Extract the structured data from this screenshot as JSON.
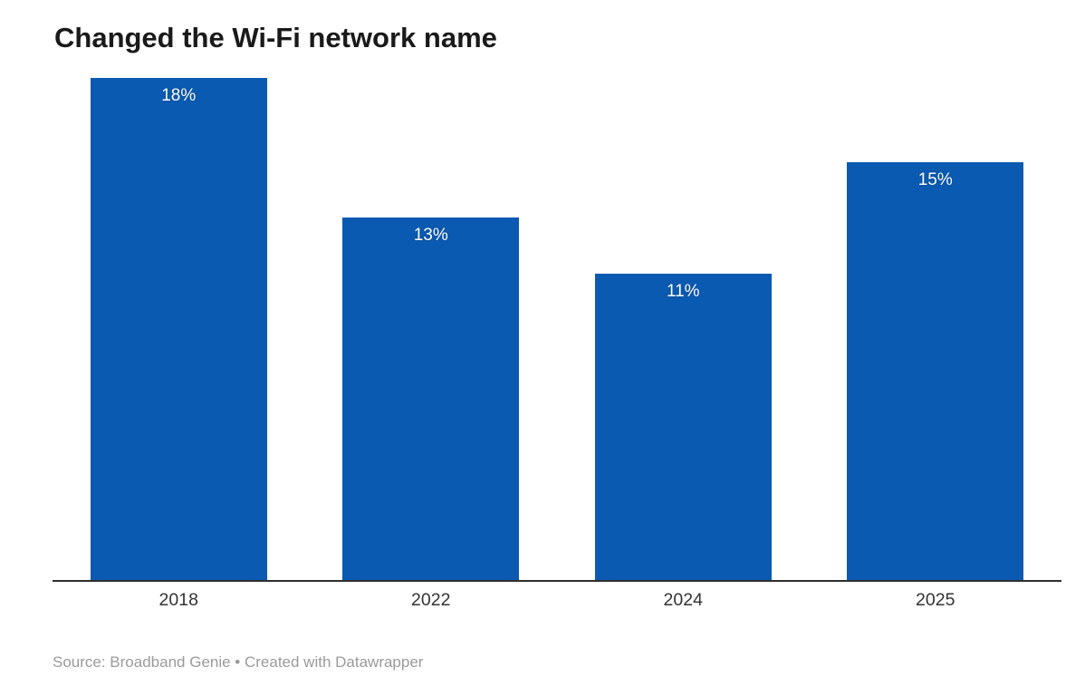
{
  "title": "Changed the Wi-Fi network name",
  "footer": {
    "source_text": "Source: Broadband Genie • Created with Datawrapper"
  },
  "colors": {
    "background": "#ffffff",
    "bar": "#0b5ab1",
    "value_label": "#ffffff",
    "axis_line": "#2e2e2e",
    "tick_label": "#333333",
    "title_text": "#1a1a1a",
    "footer_text": "#9a9a9a"
  },
  "chart_data": {
    "type": "bar",
    "title": "Changed the Wi-Fi network name",
    "categories": [
      "2018",
      "2022",
      "2024",
      "2025"
    ],
    "values": [
      18,
      13,
      11,
      15
    ],
    "value_labels": [
      "18%",
      "13%",
      "11%",
      "15%"
    ],
    "xlabel": "",
    "ylabel": "",
    "ylim": [
      0,
      18
    ],
    "grid": false,
    "legend": false,
    "value_label_position": "inside-top",
    "orientation": "vertical"
  }
}
